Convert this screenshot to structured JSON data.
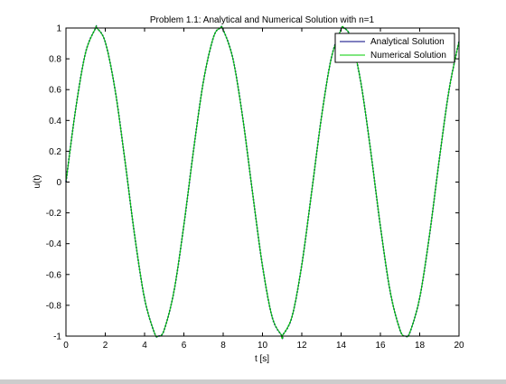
{
  "chart_data": {
    "type": "line",
    "title": "Problem 1.1: Analytical and Numerical Solution with n=1",
    "xlabel": "t [s]",
    "ylabel": "u(t)",
    "xlim": [
      0,
      20
    ],
    "ylim": [
      -1,
      1
    ],
    "xticks": [
      0,
      2,
      4,
      6,
      8,
      10,
      12,
      14,
      16,
      18,
      20
    ],
    "yticks": [
      -1,
      -0.8,
      -0.6,
      -0.4,
      -0.2,
      0,
      0.2,
      0.4,
      0.6,
      0.8,
      1
    ],
    "xtick_labels": [
      "0",
      "2",
      "4",
      "6",
      "8",
      "10",
      "12",
      "14",
      "16",
      "18",
      "20"
    ],
    "ytick_labels": [
      "-1",
      "-0.8",
      "-0.6",
      "-0.4",
      "-0.2",
      "0",
      "0.2",
      "0.4",
      "0.6",
      "0.8",
      "1"
    ],
    "grid": false,
    "legend_position": "top-right",
    "series": [
      {
        "name": "Analytical Solution",
        "color": "#00007f",
        "x": [
          0,
          0.5,
          1,
          1.5,
          1.57,
          2,
          2.5,
          3,
          3.5,
          4,
          4.5,
          4.71,
          5,
          5.5,
          6,
          6.5,
          7,
          7.5,
          7.85,
          8,
          8.5,
          9,
          9.5,
          10,
          10.5,
          11,
          11,
          11.5,
          12,
          12.5,
          13,
          13.5,
          14,
          14.14,
          14.5,
          15,
          15.5,
          16,
          16.5,
          17,
          17.28,
          17.5,
          18,
          18.5,
          19,
          19.5,
          20
        ],
        "y": [
          0,
          0.479,
          0.841,
          0.997,
          1,
          0.909,
          0.598,
          0.141,
          -0.351,
          -0.757,
          -0.978,
          -1,
          -0.959,
          -0.706,
          -0.279,
          0.215,
          0.657,
          0.938,
          1,
          0.989,
          0.798,
          0.412,
          -0.075,
          -0.544,
          -0.88,
          -1,
          -1,
          -0.875,
          -0.537,
          -0.066,
          0.42,
          0.804,
          0.991,
          1,
          0.935,
          0.65,
          0.207,
          -0.288,
          -0.712,
          -0.961,
          -1,
          -0.976,
          -0.751,
          -0.342,
          0.15,
          0.603,
          0.913
        ]
      },
      {
        "name": "Numerical Solution",
        "color": "#00cc00",
        "x": [
          0,
          0.5,
          1,
          1.5,
          1.57,
          2,
          2.5,
          3,
          3.5,
          4,
          4.5,
          4.71,
          5,
          5.5,
          6,
          6.5,
          7,
          7.5,
          7.85,
          8,
          8.5,
          9,
          9.5,
          10,
          10.5,
          11,
          11,
          11.5,
          12,
          12.5,
          13,
          13.5,
          14,
          14.14,
          14.5,
          15,
          15.5,
          16,
          16.5,
          17,
          17.28,
          17.5,
          18,
          18.5,
          19,
          19.5,
          20
        ],
        "y": [
          0,
          0.479,
          0.841,
          0.997,
          1,
          0.909,
          0.598,
          0.141,
          -0.351,
          -0.757,
          -0.978,
          -1,
          -0.959,
          -0.706,
          -0.279,
          0.215,
          0.657,
          0.938,
          1,
          0.989,
          0.798,
          0.412,
          -0.075,
          -0.544,
          -0.88,
          -1,
          -1,
          -0.875,
          -0.537,
          -0.066,
          0.42,
          0.804,
          0.991,
          1,
          0.935,
          0.65,
          0.207,
          -0.288,
          -0.712,
          -0.961,
          -1,
          -0.976,
          -0.751,
          -0.342,
          0.15,
          0.603,
          0.913
        ]
      }
    ]
  }
}
